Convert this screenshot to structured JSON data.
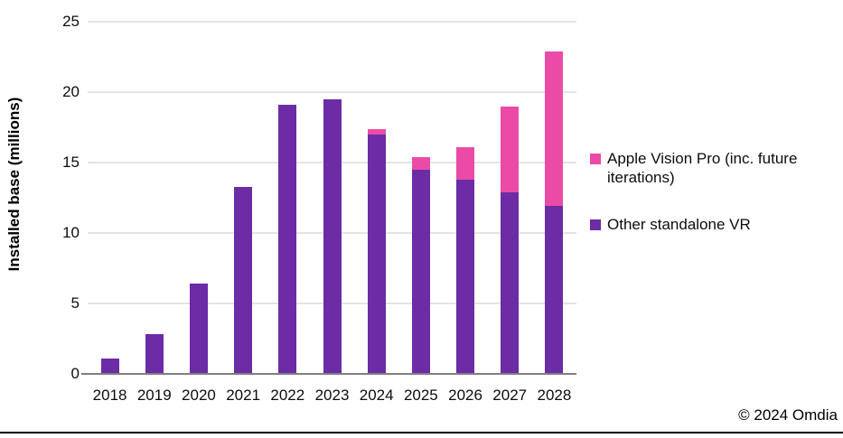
{
  "chart_data": {
    "type": "bar",
    "stacked": true,
    "title": "",
    "xlabel": "",
    "ylabel": "Installed base (millions)",
    "ylim": [
      0,
      25
    ],
    "yticks": [
      0,
      5,
      10,
      15,
      20,
      25
    ],
    "grid": "horizontal",
    "legend_position": "right",
    "categories": [
      "2018",
      "2019",
      "2020",
      "2021",
      "2022",
      "2023",
      "2024",
      "2025",
      "2026",
      "2027",
      "2028"
    ],
    "series": [
      {
        "name": "Apple Vision Pro (inc. future iterations)",
        "color": "#EB4BA6",
        "values": [
          0,
          0,
          0,
          0,
          0,
          0,
          0.4,
          0.9,
          2.3,
          6.1,
          11.0
        ]
      },
      {
        "name": "Other standalone VR",
        "color": "#6B2CA5",
        "values": [
          1.1,
          2.8,
          6.4,
          13.3,
          19.1,
          19.5,
          17.0,
          14.5,
          13.8,
          12.9,
          11.9
        ]
      }
    ],
    "stack_order_bottom_to_top": [
      1,
      0
    ],
    "colors": {
      "gridline": "#E4E4E4",
      "axis_line": "#7F7F7F",
      "text": "#0d0d0d"
    }
  },
  "footer": {
    "credit": "© 2024 Omdia"
  }
}
